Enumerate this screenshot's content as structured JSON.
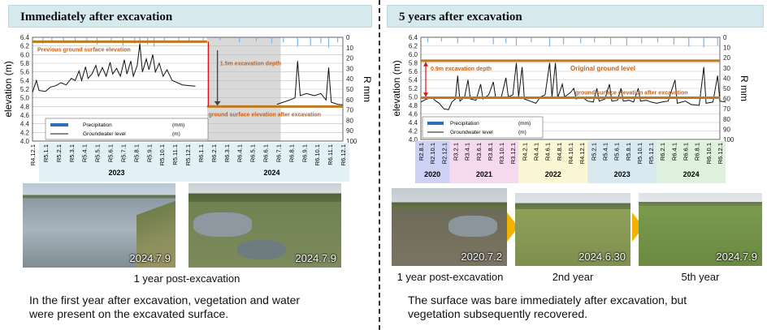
{
  "left": {
    "title": "Immediately after excavation",
    "photos": [
      {
        "date": "2024.7.9"
      },
      {
        "date": "2024.7.9"
      }
    ],
    "caption": "1 year post-excavation",
    "description": [
      "In the first year after excavation, vegetation and water",
      "were present on the excavated surface."
    ]
  },
  "right": {
    "title": "5 years after excavation",
    "photos": [
      {
        "date": "2020.7.2",
        "caption": "1 year post-excavation"
      },
      {
        "date": "2024.6.30",
        "caption": "2nd year"
      },
      {
        "date": "2024.7.9",
        "caption": "5th year"
      }
    ],
    "description": [
      "The surface was bare immediately after excavation, but",
      "vegetation subsequently recovered."
    ]
  },
  "chart_data": [
    {
      "type": "line",
      "ylabel": "elevation (m)",
      "y2label": "R mm",
      "ylim": [
        4.0,
        6.4
      ],
      "y2lim": [
        0,
        100
      ],
      "y2_inverted": true,
      "yticks": [
        "4.0",
        "4.2",
        "4.4",
        "4.6",
        "4.8",
        "5.0",
        "5.2",
        "5.4",
        "5.6",
        "5.8",
        "6.0",
        "6.2",
        "6.4"
      ],
      "y2ticks": [
        "0",
        "10",
        "20",
        "30",
        "40",
        "50",
        "60",
        "70",
        "80",
        "90",
        "100"
      ],
      "x_ticks": [
        "R4.12.1",
        "R5.1.1",
        "R5.2.1",
        "R5.3.1",
        "R5.4.1",
        "R5.5.1",
        "R5.6.1",
        "R5.7.1",
        "R5.8.1",
        "R5.9.1",
        "R5.10.1",
        "R5.11.1",
        "R5.12.1",
        "R6.1.1",
        "R6.2.1",
        "R6.3.1",
        "R6.4.1",
        "R6.5.1",
        "R6.6.1",
        "R6.7.1",
        "R6.8.1",
        "R6.9.1",
        "R6.10.1",
        "R6.11.1",
        "R6.12.1"
      ],
      "year_groups": [
        {
          "label": "2023",
          "from": 1,
          "to": 12
        },
        {
          "label": "2024",
          "from": 13,
          "to": 24
        }
      ],
      "legend": [
        {
          "name": "Precipitation",
          "unit": "(mm)"
        },
        {
          "name": "Groundwater level",
          "unit": "(m)"
        }
      ],
      "annotations": {
        "previous_surface": {
          "label": "Previous ground surface elevation",
          "value": 6.3
        },
        "after_surface": {
          "label": "ground surface elevation after excavation",
          "value": 4.8
        },
        "depth": {
          "label": "1.5m excavation depth"
        }
      },
      "series": [
        {
          "name": "Groundwater level",
          "values": [
            [
              0,
              5.13
            ],
            [
              0.3,
              5.4
            ],
            [
              0.5,
              5.17
            ],
            [
              1,
              5.15
            ],
            [
              1.4,
              5.25
            ],
            [
              1.8,
              5.28
            ],
            [
              2.2,
              5.35
            ],
            [
              2.6,
              5.3
            ],
            [
              3.0,
              5.45
            ],
            [
              3.3,
              5.4
            ],
            [
              3.6,
              5.62
            ],
            [
              3.8,
              5.4
            ],
            [
              4.1,
              5.72
            ],
            [
              4.3,
              5.45
            ],
            [
              4.6,
              5.55
            ],
            [
              4.9,
              5.75
            ],
            [
              5.1,
              5.5
            ],
            [
              5.4,
              5.7
            ],
            [
              5.7,
              5.5
            ],
            [
              6.0,
              5.82
            ],
            [
              6.2,
              5.55
            ],
            [
              6.5,
              5.68
            ],
            [
              6.8,
              5.5
            ],
            [
              7.1,
              5.88
            ],
            [
              7.3,
              5.55
            ],
            [
              7.6,
              5.85
            ],
            [
              7.8,
              5.5
            ],
            [
              8.1,
              5.75
            ],
            [
              8.3,
              6.25
            ],
            [
              8.5,
              5.6
            ],
            [
              8.8,
              5.9
            ],
            [
              9.0,
              5.65
            ],
            [
              9.3,
              6.0
            ],
            [
              9.5,
              5.6
            ],
            [
              9.8,
              5.8
            ],
            [
              10.1,
              5.5
            ],
            [
              10.4,
              5.65
            ],
            [
              10.8,
              5.4
            ],
            [
              11.2,
              5.35
            ],
            [
              11.6,
              5.3
            ],
            [
              12.2,
              5.28
            ],
            [
              12.6,
              5.27
            ],
            [
              18.9,
              4.85
            ],
            [
              19.4,
              4.9
            ],
            [
              19.9,
              4.95
            ],
            [
              20.3,
              5.0
            ],
            [
              20.5,
              5.85
            ],
            [
              20.7,
              5.05
            ],
            [
              21.2,
              5.1
            ],
            [
              21.8,
              5.05
            ],
            [
              22.3,
              5.1
            ],
            [
              22.7,
              4.95
            ],
            [
              22.9,
              5.7
            ],
            [
              23.1,
              4.9
            ],
            [
              23.6,
              4.85
            ],
            [
              24,
              4.84
            ]
          ]
        },
        {
          "name": "Precipitation",
          "values": [
            [
              0.8,
              6
            ],
            [
              1.5,
              4
            ],
            [
              2.4,
              3
            ],
            [
              3.3,
              5
            ],
            [
              4.2,
              4
            ],
            [
              5.0,
              7
            ],
            [
              6.1,
              5
            ],
            [
              7.0,
              8
            ],
            [
              7.9,
              6
            ],
            [
              8.3,
              12
            ],
            [
              8.9,
              7
            ],
            [
              9.4,
              9
            ],
            [
              10.2,
              5
            ],
            [
              11.3,
              4
            ],
            [
              12.1,
              3
            ],
            [
              13.2,
              4
            ],
            [
              14.5,
              3
            ],
            [
              16.0,
              5
            ],
            [
              17.3,
              4
            ],
            [
              18.5,
              6
            ],
            [
              19.4,
              5
            ],
            [
              20.5,
              9
            ],
            [
              21.5,
              8
            ],
            [
              22.3,
              6
            ],
            [
              22.9,
              10
            ],
            [
              23.6,
              5
            ]
          ]
        }
      ]
    },
    {
      "type": "line",
      "ylabel": "elevation (m)",
      "y2label": "R mm",
      "ylim": [
        4.0,
        6.4
      ],
      "y2lim": [
        0,
        100
      ],
      "y2_inverted": true,
      "yticks": [
        "4.0",
        "4.2",
        "4.4",
        "4.6",
        "4.8",
        "5.0",
        "5.2",
        "5.4",
        "5.6",
        "5.8",
        "6.0",
        "6.2",
        "6.4"
      ],
      "y2ticks": [
        "0",
        "10",
        "20",
        "30",
        "40",
        "50",
        "60",
        "70",
        "80",
        "90",
        "100"
      ],
      "x_ticks": [
        "R2.8.1",
        "R2.10.1",
        "R2.12.1",
        "R3.2.1",
        "R3.4.1",
        "R3.6.1",
        "R3.8.1",
        "R3.10.1",
        "R3.12.1",
        "R4.2.1",
        "R4.4.1",
        "R4.6.1",
        "R4.8.1",
        "R4.10.1",
        "R4.12.1",
        "R5.2.1",
        "R5.4.1",
        "R5.6.1",
        "R5.8.1",
        "R5.10.1",
        "R5.12.1",
        "R6.2.1",
        "R6.4.1",
        "R6.6.1",
        "R6.8.1",
        "R6.10.1",
        "R6.12.1"
      ],
      "year_groups": [
        {
          "label": "2020",
          "from": 0,
          "to": 2,
          "color": "#cdd2f4"
        },
        {
          "label": "2021",
          "from": 3,
          "to": 8,
          "color": "#f7d9ef"
        },
        {
          "label": "2022",
          "from": 9,
          "to": 14,
          "color": "#fbf6d4"
        },
        {
          "label": "2023",
          "from": 15,
          "to": 20,
          "color": "#d9e9f2"
        },
        {
          "label": "2024",
          "from": 21,
          "to": 26,
          "color": "#dff1dc"
        }
      ],
      "legend": [
        {
          "name": "Precipitation",
          "unit": "(mm)"
        },
        {
          "name": "Groundwater level",
          "unit": "(m)"
        }
      ],
      "annotations": {
        "original_surface": {
          "label": "Original ground level",
          "value": 5.85
        },
        "after_surface": {
          "label": "ground surface elevation after excavation",
          "value": 4.98
        },
        "depth": {
          "label": "0.9m excavation depth"
        }
      },
      "series": [
        {
          "name": "Groundwater level",
          "values": [
            [
              0,
              4.88
            ],
            [
              0.5,
              4.95
            ],
            [
              1.0,
              4.98
            ],
            [
              1.3,
              4.9
            ],
            [
              1.6,
              4.85
            ],
            [
              2.0,
              4.72
            ],
            [
              2.4,
              4.7
            ],
            [
              2.7,
              4.88
            ],
            [
              3.0,
              4.95
            ],
            [
              3.2,
              5.5
            ],
            [
              3.4,
              4.9
            ],
            [
              3.8,
              5.0
            ],
            [
              4.1,
              5.4
            ],
            [
              4.3,
              4.95
            ],
            [
              4.8,
              4.92
            ],
            [
              5.2,
              5.3
            ],
            [
              5.4,
              4.95
            ],
            [
              5.9,
              5.05
            ],
            [
              6.3,
              5.35
            ],
            [
              6.5,
              4.98
            ],
            [
              7.0,
              5.0
            ],
            [
              7.4,
              5.45
            ],
            [
              7.6,
              5.0
            ],
            [
              8.0,
              5.05
            ],
            [
              8.3,
              5.8
            ],
            [
              8.5,
              5.0
            ],
            [
              8.8,
              5.7
            ],
            [
              9.0,
              4.95
            ],
            [
              9.5,
              4.9
            ],
            [
              10.0,
              4.85
            ],
            [
              10.4,
              5.0
            ],
            [
              10.8,
              5.05
            ],
            [
              11.2,
              5.8
            ],
            [
              11.4,
              5.0
            ],
            [
              11.7,
              5.8
            ],
            [
              11.9,
              4.98
            ],
            [
              12.3,
              5.3
            ],
            [
              12.5,
              5.0
            ],
            [
              13.0,
              5.1
            ],
            [
              13.3,
              5.2
            ],
            [
              13.5,
              4.95
            ],
            [
              14.0,
              5.0
            ],
            [
              14.5,
              4.9
            ],
            [
              15.0,
              4.88
            ],
            [
              15.3,
              5.2
            ],
            [
              15.5,
              4.9
            ],
            [
              16.0,
              4.95
            ],
            [
              16.4,
              5.3
            ],
            [
              16.6,
              4.9
            ],
            [
              17.1,
              4.92
            ],
            [
              17.4,
              5.2
            ],
            [
              17.6,
              4.9
            ],
            [
              18.1,
              4.92
            ],
            [
              18.5,
              4.88
            ],
            [
              18.9,
              5.2
            ],
            [
              19.1,
              4.9
            ],
            [
              19.6,
              4.92
            ],
            [
              20.0,
              4.88
            ],
            [
              20.5,
              4.85
            ],
            [
              21.0,
              4.88
            ],
            [
              21.5,
              4.9
            ],
            [
              22.1,
              5.4
            ],
            [
              22.3,
              4.85
            ],
            [
              23.0,
              4.9
            ],
            [
              23.5,
              4.82
            ],
            [
              24.2,
              4.8
            ],
            [
              24.6,
              5.7
            ],
            [
              24.8,
              4.85
            ],
            [
              25.4,
              4.88
            ],
            [
              25.8,
              5.5
            ],
            [
              26.0,
              4.9
            ],
            [
              26.5,
              4.88
            ]
          ]
        },
        {
          "name": "Precipitation",
          "values": [
            [
              0.6,
              5
            ],
            [
              1.8,
              4
            ],
            [
              3.2,
              6
            ],
            [
              4.6,
              5
            ],
            [
              6.3,
              7
            ],
            [
              7.4,
              6
            ],
            [
              8.3,
              8
            ],
            [
              9.6,
              5
            ],
            [
              11.2,
              9
            ],
            [
              12.4,
              7
            ],
            [
              13.9,
              6
            ],
            [
              15.1,
              5
            ],
            [
              16.5,
              7
            ],
            [
              17.9,
              8
            ],
            [
              19.2,
              6
            ],
            [
              20.6,
              5
            ],
            [
              22.0,
              7
            ],
            [
              23.3,
              9
            ],
            [
              24.6,
              10
            ],
            [
              25.8,
              8
            ]
          ]
        }
      ]
    }
  ]
}
